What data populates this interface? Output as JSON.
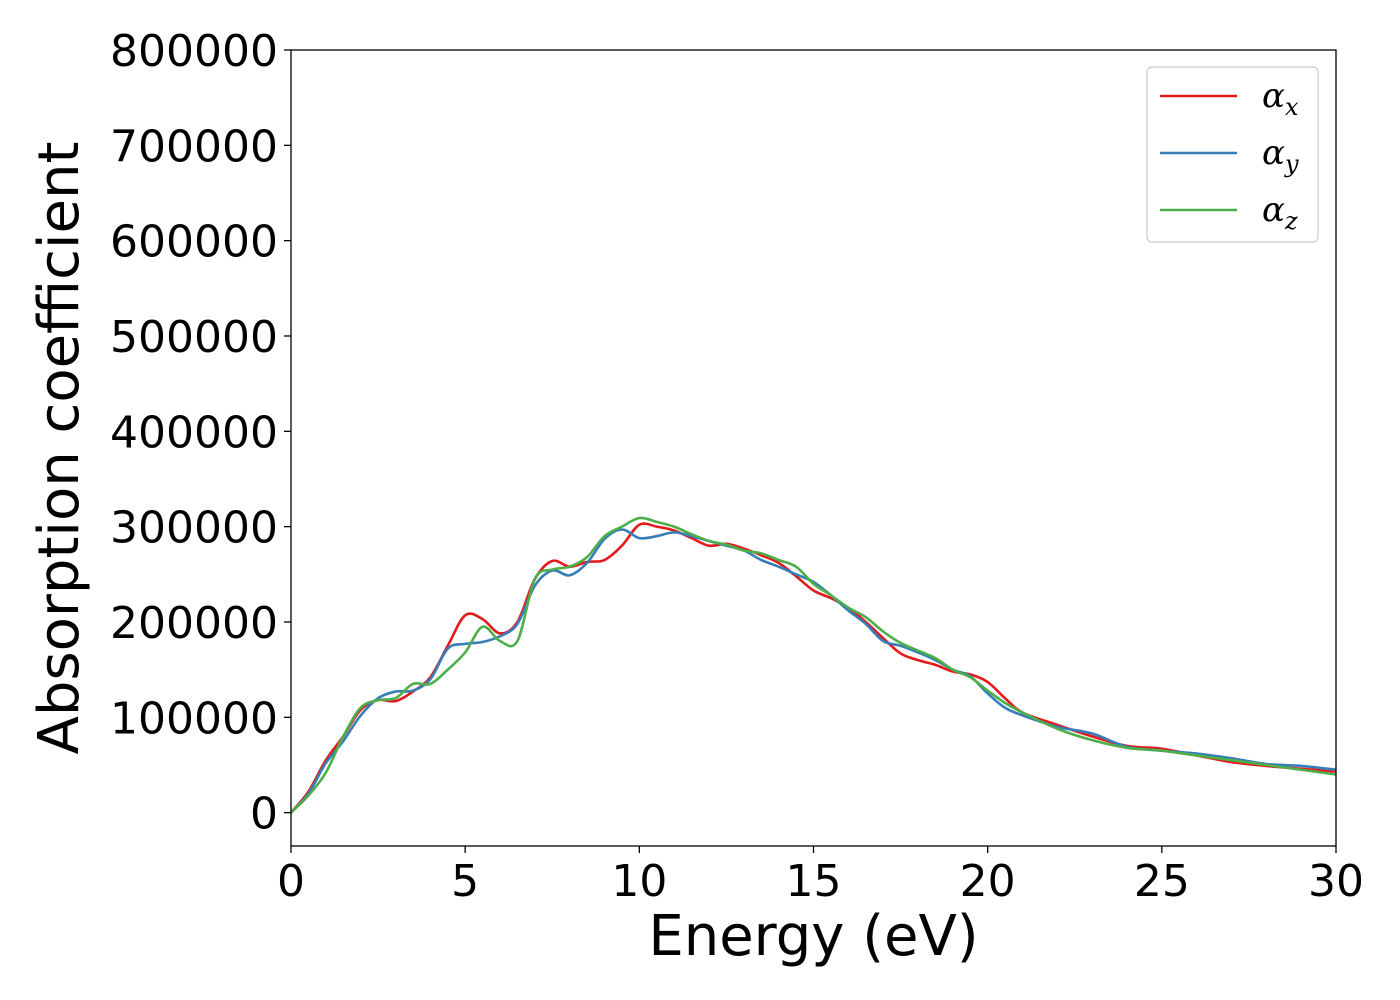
{
  "chart_data": {
    "type": "line",
    "xlabel": "Energy (eV)",
    "ylabel": "Absorption coefficient",
    "xlim": [
      0,
      30
    ],
    "ylim": [
      -35000,
      800000
    ],
    "xticks": [
      "0",
      "5",
      "10",
      "15",
      "20",
      "25",
      "30"
    ],
    "yticks": [
      "0",
      "100000",
      "200000",
      "300000",
      "400000",
      "500000",
      "600000",
      "700000",
      "800000"
    ],
    "grid": false,
    "legend": {
      "position": "top-right"
    },
    "series": [
      {
        "name": "αx",
        "symbol": "α",
        "subscript": "x",
        "color": "#e41a1c",
        "x": [
          0,
          0.5,
          1,
          1.5,
          2,
          2.5,
          3,
          3.5,
          4,
          4.5,
          5,
          5.5,
          6,
          6.5,
          7,
          7.5,
          8,
          8.5,
          9,
          9.5,
          10,
          10.5,
          11,
          11.5,
          12,
          12.5,
          13,
          13.5,
          14,
          14.5,
          15,
          15.5,
          16,
          16.5,
          17,
          17.5,
          18,
          18.5,
          19,
          19.5,
          20,
          20.5,
          21,
          22,
          23,
          24,
          25,
          26,
          27,
          28,
          29,
          30
        ],
        "y": [
          0,
          22000,
          55000,
          80000,
          108000,
          118000,
          117000,
          127000,
          142000,
          175000,
          207000,
          203000,
          188000,
          200000,
          245000,
          264000,
          258000,
          263000,
          265000,
          280000,
          302000,
          300000,
          296000,
          288000,
          280000,
          282000,
          277000,
          270000,
          262000,
          248000,
          233000,
          225000,
          215000,
          200000,
          183000,
          167000,
          160000,
          155000,
          148000,
          145000,
          137000,
          120000,
          105000,
          92000,
          80000,
          70000,
          67000,
          60000,
          53000,
          49000,
          46000,
          43000
        ]
      },
      {
        "name": "αy",
        "symbol": "α",
        "subscript": "y",
        "color": "#377eb8",
        "x": [
          0,
          0.5,
          1,
          1.5,
          2,
          2.5,
          3,
          3.5,
          4,
          4.5,
          5,
          5.5,
          6,
          6.5,
          7,
          7.5,
          8,
          8.5,
          9,
          9.5,
          10,
          10.5,
          11,
          11.5,
          12,
          12.5,
          13,
          13.5,
          14,
          14.5,
          15,
          15.5,
          16,
          16.5,
          17,
          17.5,
          18,
          18.5,
          19,
          19.5,
          20,
          20.5,
          21,
          22,
          23,
          24,
          25,
          26,
          27,
          28,
          29,
          30
        ],
        "y": [
          0,
          20000,
          52000,
          75000,
          102000,
          120000,
          127000,
          128000,
          140000,
          172000,
          177000,
          179000,
          185000,
          198000,
          238000,
          254000,
          249000,
          262000,
          287000,
          297000,
          288000,
          290000,
          294000,
          290000,
          285000,
          280000,
          275000,
          265000,
          258000,
          250000,
          242000,
          228000,
          212000,
          198000,
          180000,
          175000,
          168000,
          160000,
          150000,
          143000,
          125000,
          110000,
          102000,
          90000,
          83000,
          69000,
          65000,
          62000,
          57000,
          51000,
          49000,
          45000
        ]
      },
      {
        "name": "αz",
        "symbol": "α",
        "subscript": "z",
        "color": "#4daf4a",
        "x": [
          0,
          0.5,
          1,
          1.5,
          2,
          2.5,
          3,
          3.5,
          4,
          4.5,
          5,
          5.5,
          6,
          6.5,
          7,
          7.5,
          8,
          8.5,
          9,
          9.5,
          10,
          10.5,
          11,
          11.5,
          12,
          12.5,
          13,
          13.5,
          14,
          14.5,
          15,
          15.5,
          16,
          16.5,
          17,
          17.5,
          18,
          18.5,
          19,
          19.5,
          20,
          20.5,
          21,
          22,
          23,
          24,
          25,
          26,
          27,
          28,
          29,
          30
        ],
        "y": [
          0,
          18000,
          42000,
          80000,
          110000,
          118000,
          120000,
          135000,
          135000,
          150000,
          168000,
          195000,
          180000,
          180000,
          245000,
          255000,
          258000,
          268000,
          290000,
          300000,
          309000,
          305000,
          300000,
          292000,
          285000,
          281000,
          275000,
          272000,
          265000,
          258000,
          240000,
          228000,
          215000,
          205000,
          190000,
          178000,
          170000,
          162000,
          150000,
          142000,
          128000,
          115000,
          105000,
          88000,
          76000,
          68000,
          65000,
          60000,
          55000,
          50000,
          45000,
          40000
        ]
      }
    ]
  }
}
